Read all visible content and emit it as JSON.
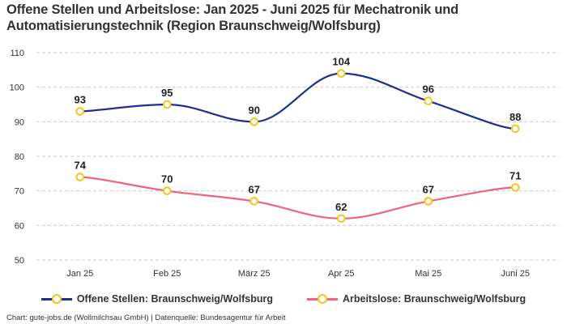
{
  "title": "Offene Stellen und Arbeitslose: Jan 2025 - Juni 2025 für Mechatronik und Automatisierungstechnik (Region Braunschweig/Wolfsburg)",
  "footer": "Chart: gute-jobs.de (Wollmilchsau GmbH) | Datenquelle: Bundesagentur für Arbeit",
  "colors": {
    "series1": "#1f2f8c",
    "series2": "#f0637c",
    "marker": "#f5c518",
    "grid": "#cccccc",
    "text": "#333333"
  },
  "chart_data": {
    "type": "line",
    "title": "Offene Stellen und Arbeitslose: Jan 2025 - Juni 2025 für Mechatronik und Automatisierungstechnik (Region Braunschweig/Wolfsburg)",
    "xlabel": "",
    "ylabel": "",
    "categories": [
      "Jan 25",
      "Feb 25",
      "März 25",
      "Apr 25",
      "Mai 25",
      "Juni 25"
    ],
    "ylim": [
      50,
      110
    ],
    "yticks": [
      110,
      100,
      90,
      80,
      70,
      60,
      50
    ],
    "grid": true,
    "legend_position": "bottom",
    "smooth": true,
    "series": [
      {
        "name": "Offene Stellen: Braunschweig/Wolfsburg",
        "values": [
          93,
          95,
          90,
          104,
          96,
          88
        ]
      },
      {
        "name": "Arbeitslose: Braunschweig/Wolfsburg",
        "values": [
          74,
          70,
          67,
          62,
          67,
          71
        ]
      }
    ]
  }
}
